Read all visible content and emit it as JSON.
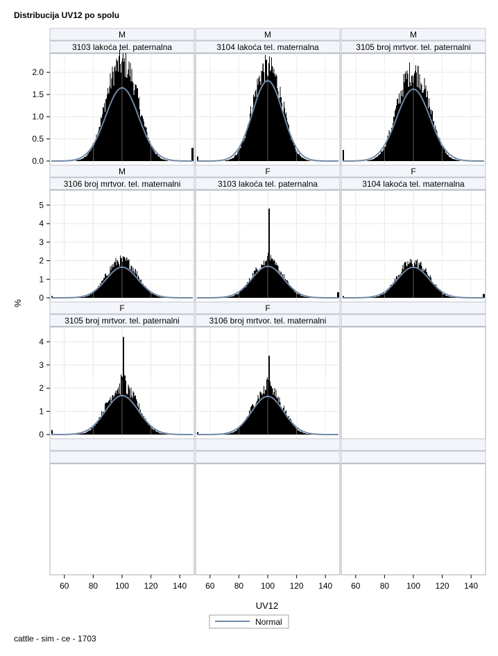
{
  "title": "Distribucija UV12 po spolu",
  "footnote": "cattle - sim - ce - 1703",
  "chart_data": {
    "type": "histogram",
    "x_label": "UV12",
    "y_label": "%",
    "x_range": [
      50,
      150
    ],
    "x_ticks": [
      60,
      80,
      100,
      120,
      140
    ],
    "row_y_ranges": [
      [
        0,
        2.3
      ],
      [
        0,
        5.5
      ],
      [
        0,
        4.4
      ]
    ],
    "row_y_ticks": [
      [
        "0.0",
        "0.5",
        "1.0",
        "1.5",
        "2.0"
      ],
      [
        "0",
        "1",
        "2",
        "3",
        "4",
        "5"
      ],
      [
        "0",
        "1",
        "2",
        "3",
        "4"
      ]
    ],
    "bar_color": "#000000",
    "curve_color": "#6f88a6",
    "legend": {
      "label": "Normal",
      "position": "bottom-center"
    },
    "grid": true,
    "panels": [
      {
        "sex": "M",
        "trait": "3103 lakoća tel. paternalna",
        "normal_peak": 1.65,
        "hist_peak": 2.2,
        "sd": 11.5,
        "spike": 0,
        "left_tail": 0.0,
        "right_tail": 0.3
      },
      {
        "sex": "M",
        "trait": "3104 lakoća tel. maternalna",
        "normal_peak": 1.81,
        "hist_peak": 2.1,
        "sd": 10.5,
        "spike": 0,
        "left_tail": 0.1,
        "right_tail": 0.0
      },
      {
        "sex": "M",
        "trait": "3105 broj mrtvor. tel. paternalni",
        "normal_peak": 1.62,
        "hist_peak": 2.0,
        "sd": 11.5,
        "spike": 0,
        "left_tail": 0.25,
        "right_tail": 0.0
      },
      {
        "sex": "M",
        "trait": "3106 broj mrtvor. tel. maternalni",
        "normal_peak": 1.65,
        "hist_peak": 2.0,
        "sd": 11.0,
        "spike": 0,
        "left_tail": 0.1,
        "right_tail": 0.0
      },
      {
        "sex": "F",
        "trait": "3103 lakoća tel. paternalna",
        "normal_peak": 1.7,
        "hist_peak": 1.9,
        "sd": 11.0,
        "spike": 4.8,
        "left_tail": 0.0,
        "right_tail": 0.3
      },
      {
        "sex": "F",
        "trait": "3104 lakoća tel. maternalna",
        "normal_peak": 1.65,
        "hist_peak": 1.9,
        "sd": 11.0,
        "spike": 0,
        "left_tail": 0.1,
        "right_tail": 0.2
      },
      {
        "sex": "F",
        "trait": "3105 broj mrtvor. tel. paternalni",
        "normal_peak": 1.68,
        "hist_peak": 2.0,
        "sd": 11.5,
        "spike": 4.2,
        "left_tail": 0.2,
        "right_tail": 0.0
      },
      {
        "sex": "F",
        "trait": "3106 broj mrtvor. tel. maternalni",
        "normal_peak": 1.65,
        "hist_peak": 1.9,
        "sd": 11.0,
        "spike": 3.4,
        "left_tail": 0.1,
        "right_tail": 0.0
      }
    ]
  }
}
